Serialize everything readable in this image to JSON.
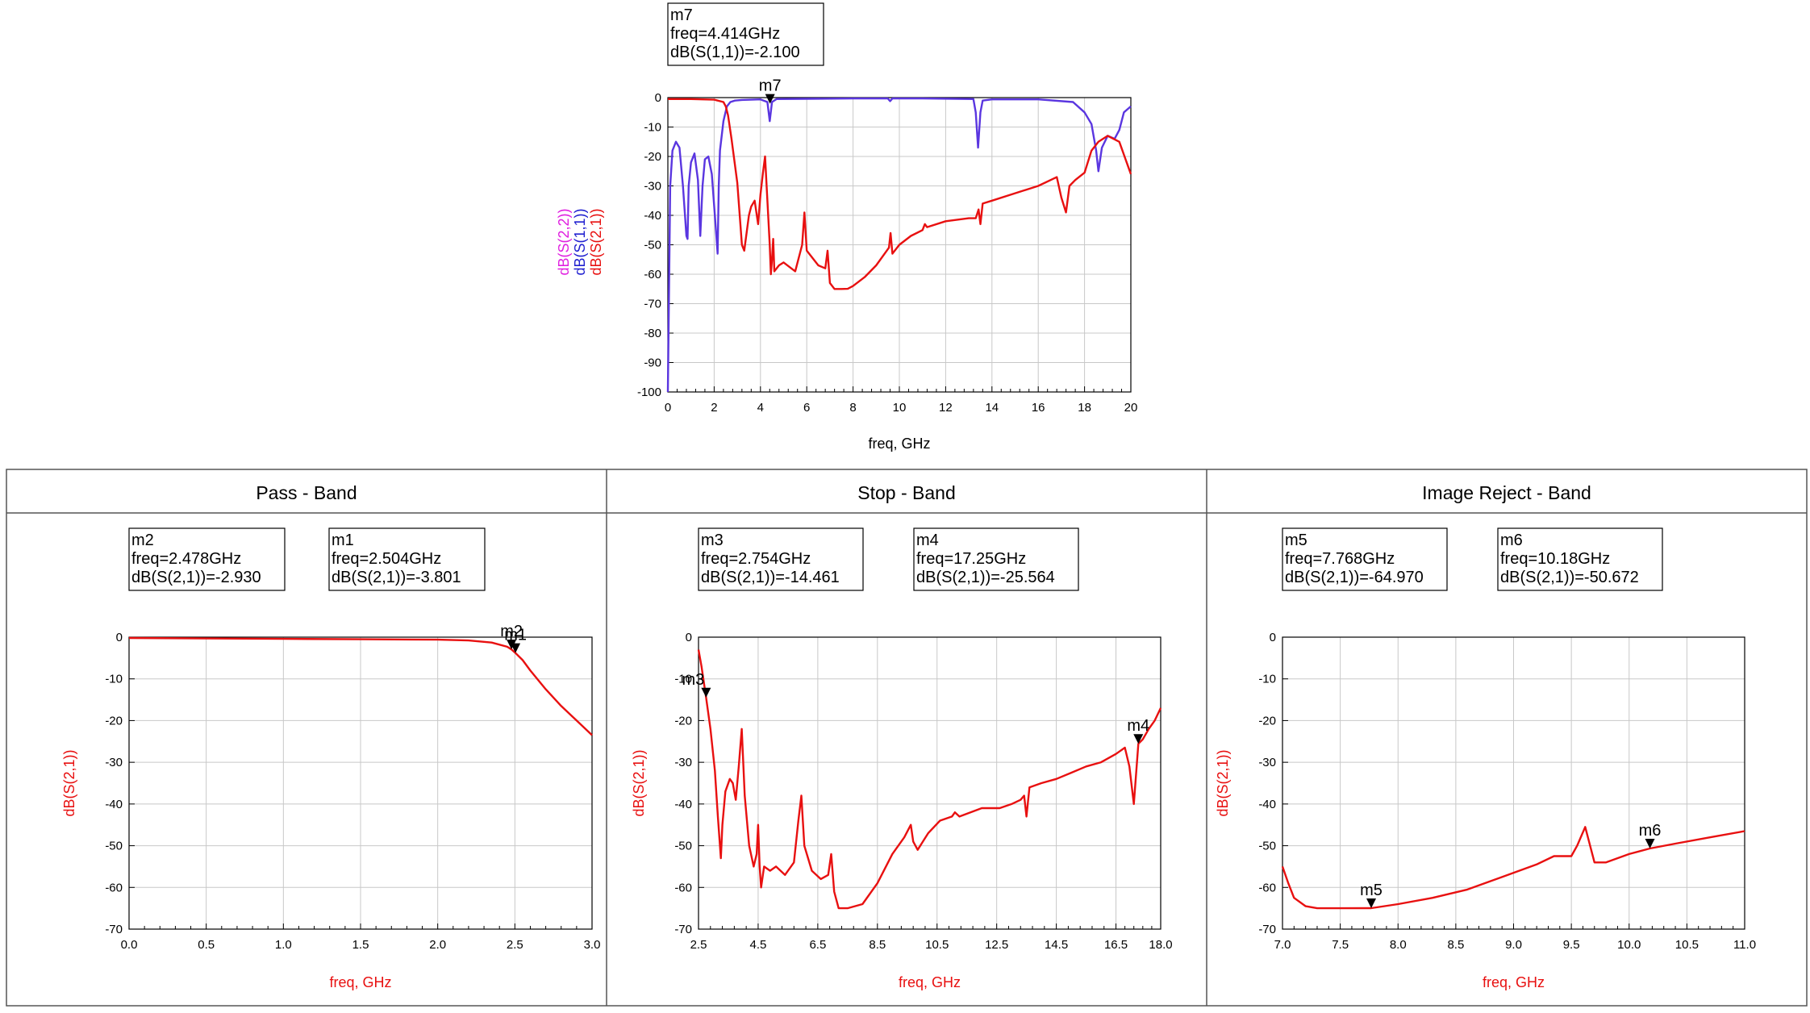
{
  "chart_data": [
    {
      "type": "line",
      "id": "top",
      "title": "",
      "xlabel": "freq, GHz",
      "ylabel_series": [
        "dB(S(2,2))",
        "dB(S(1,1))",
        "dB(S(2,1))"
      ],
      "xlim": [
        0,
        20
      ],
      "ylim": [
        -100,
        0
      ],
      "xticks": [
        0,
        2,
        4,
        6,
        8,
        10,
        12,
        14,
        16,
        18,
        20
      ],
      "xtick_labels": [
        "0",
        "2",
        "4",
        "6",
        "8",
        "10",
        "12",
        "14",
        "16",
        "18",
        "20"
      ],
      "yticks": [
        0,
        -10,
        -20,
        -30,
        -40,
        -50,
        -60,
        -70,
        -80,
        -90,
        -100
      ],
      "ytick_labels": [
        "0",
        "-10",
        "-20",
        "-30",
        "-40",
        "-50",
        "-60",
        "-70",
        "-80",
        "-90",
        "-100"
      ],
      "grid": true,
      "series": [
        {
          "name": "dB(S(1,1))",
          "color": "#5a36e0",
          "x": [
            0,
            0.1,
            0.2,
            0.35,
            0.5,
            0.65,
            0.8,
            0.85,
            0.9,
            1.0,
            1.15,
            1.3,
            1.4,
            1.5,
            1.6,
            1.75,
            1.9,
            2.05,
            2.15,
            2.2,
            2.25,
            2.4,
            2.55,
            2.7,
            2.9,
            3.2,
            4.0,
            4.3,
            4.4,
            4.5,
            4.7,
            6,
            8,
            9.5,
            9.6,
            9.7,
            11,
            13.2,
            13.3,
            13.4,
            13.5,
            13.6,
            14,
            16,
            17.5,
            18.0,
            18.3,
            18.5,
            18.6,
            18.75,
            19.0,
            19.3,
            19.5,
            19.7,
            20.0
          ],
          "y": [
            -100,
            -30,
            -18,
            -15,
            -17,
            -30,
            -47,
            -48,
            -30,
            -22,
            -19,
            -28,
            -47,
            -30,
            -21,
            -20,
            -26,
            -42,
            -53,
            -30,
            -18,
            -8,
            -3,
            -1.5,
            -1,
            -0.8,
            -0.6,
            -1.5,
            -8,
            -1.5,
            -0.5,
            -0.4,
            -0.3,
            -0.3,
            -1.2,
            -0.3,
            -0.3,
            -0.5,
            -5,
            -17,
            -5,
            -1,
            -0.6,
            -0.6,
            -1.5,
            -5,
            -9,
            -18,
            -25,
            -17,
            -13,
            -14,
            -11,
            -5,
            -3
          ]
        },
        {
          "name": "dB(S(2,1))",
          "color": "#e81010",
          "x": [
            0,
            1.0,
            2.0,
            2.4,
            2.5,
            2.6,
            2.75,
            3.0,
            3.2,
            3.3,
            3.5,
            3.6,
            3.75,
            3.9,
            4.0,
            4.1,
            4.2,
            4.4,
            4.45,
            4.5,
            4.55,
            4.6,
            4.8,
            5.0,
            5.5,
            5.8,
            5.9,
            6.0,
            6.5,
            6.8,
            6.9,
            7.0,
            7.2,
            7.5,
            7.77,
            8.0,
            8.5,
            9.0,
            9.55,
            9.62,
            9.7,
            10.0,
            10.5,
            11.0,
            11.1,
            11.2,
            12.0,
            13.0,
            13.3,
            13.42,
            13.5,
            13.6,
            14.0,
            15.0,
            16.0,
            16.8,
            17.0,
            17.2,
            17.35,
            17.6,
            18.0,
            18.3,
            18.6,
            19.0,
            19.5,
            20.0
          ],
          "y": [
            -0.5,
            -0.5,
            -0.7,
            -1.5,
            -3,
            -6,
            -14,
            -29,
            -50,
            -52,
            -40,
            -37,
            -35,
            -43,
            -33,
            -26,
            -20,
            -50,
            -60,
            -55,
            -48,
            -59,
            -57,
            -56,
            -59,
            -50,
            -39,
            -52,
            -57,
            -58,
            -52,
            -63,
            -65,
            -65,
            -64.97,
            -64,
            -61,
            -57,
            -51,
            -46,
            -53,
            -50,
            -47,
            -45,
            -43,
            -44,
            -42,
            -41,
            -41,
            -38,
            -43,
            -36,
            -35,
            -32.5,
            -30,
            -27,
            -34,
            -39,
            -30,
            -28,
            -25.5,
            -18,
            -15,
            -13,
            -15,
            -26
          ]
        }
      ],
      "markers": [
        {
          "label": "m7",
          "x": 4.414,
          "y": -2.1,
          "box_lines": [
            "m7",
            "freq=4.414GHz",
            "dB(S(1,1))=-2.100"
          ]
        }
      ]
    },
    {
      "type": "line",
      "id": "pass",
      "title": "Pass - Band",
      "xlabel": "freq, GHz",
      "ylabel": "dB(S(2,1))",
      "xlim": [
        0,
        3
      ],
      "ylim": [
        -70,
        0
      ],
      "xticks": [
        0.0,
        0.5,
        1.0,
        1.5,
        2.0,
        2.5,
        3.0
      ],
      "xtick_labels": [
        "0.0",
        "0.5",
        "1.0",
        "1.5",
        "2.0",
        "2.5",
        "3.0"
      ],
      "yticks": [
        0,
        -10,
        -20,
        -30,
        -40,
        -50,
        -60,
        -70
      ],
      "ytick_labels": [
        "0",
        "-10",
        "-20",
        "-30",
        "-40",
        "-50",
        "-60",
        "-70"
      ],
      "grid": true,
      "series": [
        {
          "name": "dB(S(2,1))",
          "color": "#e81010",
          "x": [
            0,
            0.5,
            1.0,
            1.5,
            2.0,
            2.2,
            2.35,
            2.45,
            2.478,
            2.504,
            2.55,
            2.6,
            2.7,
            2.8,
            2.9,
            3.0
          ],
          "y": [
            -0.2,
            -0.3,
            -0.4,
            -0.5,
            -0.6,
            -0.8,
            -1.3,
            -2.3,
            -2.93,
            -3.801,
            -5.5,
            -8,
            -12.5,
            -16.5,
            -20,
            -23.5
          ]
        }
      ],
      "markers": [
        {
          "label": "m2",
          "x": 2.478,
          "y": -2.93,
          "box_lines": [
            "m2",
            "freq=2.478GHz",
            "dB(S(2,1))=-2.930"
          ]
        },
        {
          "label": "m1",
          "x": 2.504,
          "y": -3.801,
          "box_lines": [
            "m1",
            "freq=2.504GHz",
            "dB(S(2,1))=-3.801"
          ]
        }
      ]
    },
    {
      "type": "line",
      "id": "stop",
      "title": "Stop - Band",
      "xlabel": "freq, GHz",
      "ylabel": "dB(S(2,1))",
      "xlim": [
        2.5,
        18
      ],
      "ylim": [
        -70,
        0
      ],
      "xticks": [
        2.5,
        4.5,
        6.5,
        8.5,
        10.5,
        12.5,
        14.5,
        16.5,
        18.0
      ],
      "xtick_labels": [
        "2.5",
        "4.5",
        "6.5",
        "8.5",
        "10.5",
        "12.5",
        "14.5",
        "16.5",
        "18.0"
      ],
      "yticks": [
        0,
        -10,
        -20,
        -30,
        -40,
        -50,
        -60,
        -70
      ],
      "ytick_labels": [
        "0",
        "-10",
        "-20",
        "-30",
        "-40",
        "-50",
        "-60",
        "-70"
      ],
      "grid": true,
      "series": [
        {
          "name": "dB(S(2,1))",
          "color": "#e81010",
          "x": [
            2.5,
            2.6,
            2.754,
            2.9,
            3.05,
            3.15,
            3.25,
            3.3,
            3.4,
            3.55,
            3.65,
            3.75,
            3.85,
            3.95,
            4.05,
            4.2,
            4.35,
            4.45,
            4.5,
            4.55,
            4.6,
            4.7,
            4.9,
            5.1,
            5.4,
            5.7,
            5.85,
            5.95,
            6.05,
            6.3,
            6.6,
            6.85,
            6.95,
            7.05,
            7.2,
            7.5,
            8.0,
            8.5,
            9.0,
            9.4,
            9.62,
            9.7,
            9.85,
            10.2,
            10.6,
            11.0,
            11.1,
            11.25,
            12.0,
            12.6,
            13.0,
            13.3,
            13.42,
            13.5,
            13.6,
            13.8,
            14.0,
            14.5,
            15.0,
            15.5,
            16.0,
            16.5,
            16.8,
            16.95,
            17.1,
            17.25,
            17.4,
            17.6,
            17.8,
            18.0
          ],
          "y": [
            -3,
            -7,
            -14.461,
            -22,
            -32,
            -43,
            -53,
            -45,
            -37,
            -34,
            -35,
            -39,
            -31,
            -22,
            -38,
            -50,
            -55,
            -52,
            -45,
            -55,
            -60,
            -55,
            -56,
            -55,
            -57,
            -54,
            -44,
            -38,
            -50,
            -56,
            -58,
            -57,
            -52,
            -61,
            -65,
            -65,
            -64,
            -59,
            -52,
            -48,
            -45,
            -49,
            -51,
            -47,
            -44,
            -43,
            -42,
            -43,
            -41,
            -41,
            -40,
            -39,
            -38,
            -43,
            -36,
            -35.5,
            -35,
            -34,
            -32.5,
            -31,
            -30,
            -28,
            -26.5,
            -31,
            -40,
            -25.564,
            -24.5,
            -22,
            -20,
            -17
          ]
        }
      ],
      "markers": [
        {
          "label": "m3",
          "x": 2.754,
          "y": -14.461,
          "box_lines": [
            "m3",
            "freq=2.754GHz",
            "dB(S(2,1))=-14.461"
          ]
        },
        {
          "label": "m4",
          "x": 17.25,
          "y": -25.564,
          "box_lines": [
            "m4",
            "freq=17.25GHz",
            "dB(S(2,1))=-25.564"
          ]
        }
      ]
    },
    {
      "type": "line",
      "id": "image",
      "title": "Image Reject - Band",
      "xlabel": "freq, GHz",
      "ylabel": "dB(S(2,1))",
      "xlim": [
        7,
        11
      ],
      "ylim": [
        -70,
        0
      ],
      "xticks": [
        7.0,
        7.5,
        8.0,
        8.5,
        9.0,
        9.5,
        10.0,
        10.5,
        11.0
      ],
      "xtick_labels": [
        "7.0",
        "7.5",
        "8.0",
        "8.5",
        "9.0",
        "9.5",
        "10.0",
        "10.5",
        "11.0"
      ],
      "yticks": [
        0,
        -10,
        -20,
        -30,
        -40,
        -50,
        -60,
        -70
      ],
      "ytick_labels": [
        "0",
        "-10",
        "-20",
        "-30",
        "-40",
        "-50",
        "-60",
        "-70"
      ],
      "grid": true,
      "series": [
        {
          "name": "dB(S(2,1))",
          "color": "#e81010",
          "x": [
            7.0,
            7.05,
            7.1,
            7.2,
            7.3,
            7.5,
            7.768,
            8.0,
            8.3,
            8.6,
            8.9,
            9.2,
            9.35,
            9.5,
            9.55,
            9.62,
            9.7,
            9.8,
            10.0,
            10.18,
            10.4,
            10.7,
            11.0
          ],
          "y": [
            -55,
            -59,
            -62.5,
            -64.5,
            -65,
            -65,
            -64.97,
            -64,
            -62.5,
            -60.5,
            -57.5,
            -54.5,
            -52.5,
            -52.5,
            -50,
            -45.5,
            -54,
            -54,
            -52,
            -50.672,
            -49.5,
            -48,
            -46.5
          ]
        }
      ],
      "markers": [
        {
          "label": "m5",
          "x": 7.768,
          "y": -64.97,
          "box_lines": [
            "m5",
            "freq=7.768GHz",
            "dB(S(2,1))=-64.970"
          ]
        },
        {
          "label": "m6",
          "x": 10.18,
          "y": -50.672,
          "box_lines": [
            "m6",
            "freq=10.18GHz",
            "dB(S(2,1))=-50.672"
          ]
        }
      ]
    }
  ],
  "colors": {
    "trace_s21": "#e81010",
    "trace_s11": "#5a36e0",
    "ylabel_s22": "#e020e0",
    "ylabel_s11": "#2020d0",
    "ylabel_s21": "#e81010",
    "panel_axis_label": "#e81010"
  }
}
